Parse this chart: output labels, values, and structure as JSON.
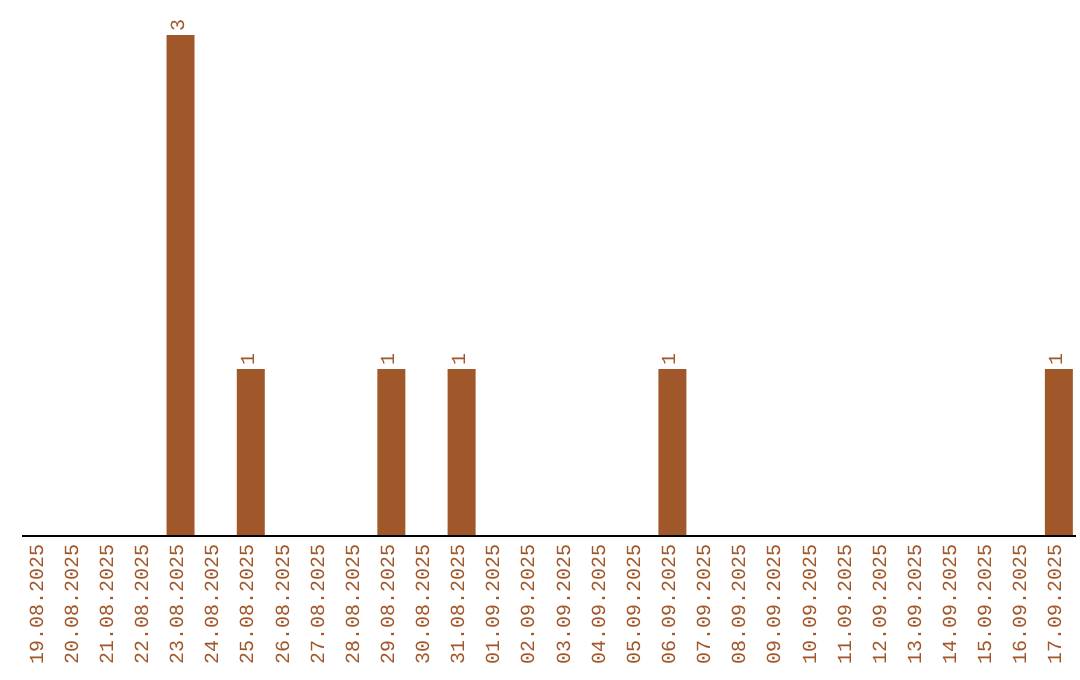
{
  "chart_data": {
    "type": "bar",
    "categories": [
      "19.08.2025",
      "20.08.2025",
      "21.08.2025",
      "22.08.2025",
      "23.08.2025",
      "24.08.2025",
      "25.08.2025",
      "26.08.2025",
      "27.08.2025",
      "28.08.2025",
      "29.08.2025",
      "30.08.2025",
      "31.08.2025",
      "01.09.2025",
      "02.09.2025",
      "03.09.2025",
      "04.09.2025",
      "05.09.2025",
      "06.09.2025",
      "07.09.2025",
      "08.09.2025",
      "09.09.2025",
      "10.09.2025",
      "11.09.2025",
      "12.09.2025",
      "13.09.2025",
      "14.09.2025",
      "15.09.2025",
      "16.09.2025",
      "17.09.2025"
    ],
    "values": [
      0,
      0,
      0,
      0,
      3,
      0,
      1,
      0,
      0,
      0,
      1,
      0,
      1,
      0,
      0,
      0,
      0,
      0,
      1,
      0,
      0,
      0,
      0,
      0,
      0,
      0,
      0,
      0,
      0,
      1
    ],
    "value_labels": [
      null,
      null,
      null,
      null,
      "3",
      null,
      "1",
      null,
      null,
      null,
      "1",
      null,
      "1",
      null,
      null,
      null,
      null,
      null,
      "1",
      null,
      null,
      null,
      null,
      null,
      null,
      null,
      null,
      null,
      null,
      "1"
    ],
    "color": "#a0572a",
    "grid": false,
    "legend": false
  }
}
